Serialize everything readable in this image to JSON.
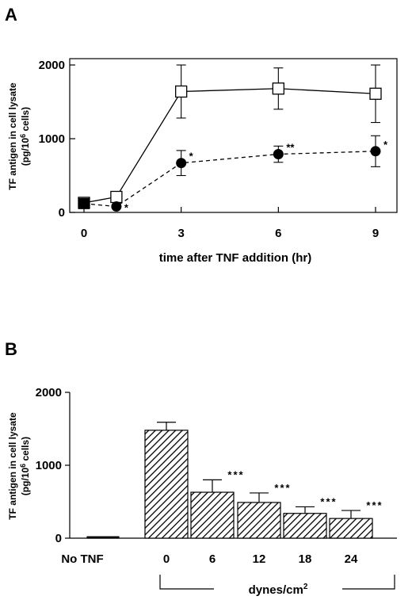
{
  "colors": {
    "ink": "#000000",
    "open_marker_fill": "#ffffff"
  },
  "chart_data": [
    {
      "panel": "A",
      "type": "line",
      "xlabel": "time after TNF addition (hr)",
      "ylabel_line1": "TF antigen in cell lysate",
      "ylabel_line2_pre": "(pg/10",
      "ylabel_line2_sup": "6",
      "ylabel_line2_post": " cells)",
      "xlim": [
        0,
        9.5
      ],
      "ylim": [
        0,
        2000
      ],
      "xticks": [
        0,
        3,
        6,
        9
      ],
      "yticks": [
        0,
        1000,
        2000
      ],
      "series": [
        {
          "marker": "open-square",
          "line": "solid",
          "x": [
            0,
            1,
            3,
            6,
            9
          ],
          "y": [
            130,
            210,
            1640,
            1680,
            1610
          ],
          "err": [
            0,
            0,
            360,
            280,
            390
          ]
        },
        {
          "marker": "filled-circle",
          "line": "dashed",
          "x": [
            0,
            1,
            3,
            6,
            9
          ],
          "y": [
            120,
            80,
            670,
            790,
            830
          ],
          "err": [
            0,
            0,
            170,
            110,
            210
          ],
          "annotations": [
            "",
            "*",
            "*",
            "**",
            "*"
          ]
        }
      ]
    },
    {
      "panel": "B",
      "type": "bar",
      "ylabel_line1": "TF antigen in cell lysate",
      "ylabel_line2_pre": "(pg/10",
      "ylabel_line2_sup": "6",
      "ylabel_line2_post": " cells)",
      "ylim": [
        0,
        2000
      ],
      "yticks": [
        0,
        1000,
        2000
      ],
      "categories": [
        "No TNF",
        "0",
        "6",
        "12",
        "18",
        "24"
      ],
      "values": [
        20,
        1480,
        630,
        490,
        340,
        270
      ],
      "err": [
        15,
        110,
        170,
        130,
        90,
        110
      ],
      "annotations": [
        "",
        "",
        "***",
        "***",
        "***",
        "***"
      ],
      "group_label_pre": "dynes/cm",
      "group_label_sup": "2"
    }
  ]
}
